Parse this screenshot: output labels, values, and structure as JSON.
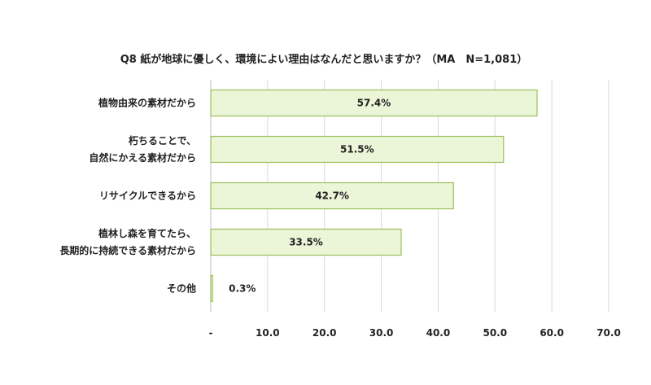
{
  "chart_data": {
    "type": "bar",
    "orientation": "horizontal",
    "title": "Q8 紙が地球に優しく、環境によい理由はなんだと思いますか？（MA　N=1,081）",
    "categories": [
      [
        "植物由来の素材だから"
      ],
      [
        "朽ちることで、",
        "自然にかえる素材だから"
      ],
      [
        "リサイクルできるから"
      ],
      [
        "植林し森を育てたら、",
        "長期的に持続できる素材だから"
      ],
      [
        "その他"
      ]
    ],
    "values": [
      57.4,
      51.5,
      42.7,
      33.5,
      0.3
    ],
    "data_labels": [
      "57.4%",
      "51.5%",
      "42.7%",
      "33.5%",
      "0.3%"
    ],
    "x_ticks": [
      "-",
      "10.0",
      "20.0",
      "30.0",
      "40.0",
      "50.0",
      "60.0",
      "70.0"
    ],
    "xlim": [
      0,
      70
    ],
    "grid": true,
    "colors": {
      "bar_fill": "#ebf5d8",
      "bar_stroke": "#9bbf5a",
      "grid": "#d9d9d9"
    }
  }
}
